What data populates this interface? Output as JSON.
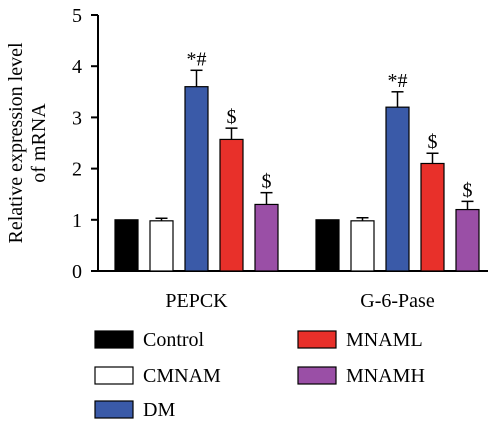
{
  "chart_data": {
    "type": "bar",
    "ylabel": "Relative expression level of mRNA",
    "ylabel_lines": [
      "Relative expression level",
      "of mRNA"
    ],
    "ylim": [
      0,
      5
    ],
    "yticks": [
      0,
      1,
      2,
      3,
      4,
      5
    ],
    "categories": [
      "PEPCK",
      "G-6-Pase"
    ],
    "series": [
      {
        "name": "Control",
        "color": "#000000",
        "values": [
          1.0,
          1.0
        ],
        "errors": [
          0,
          0
        ],
        "annotations": [
          "",
          ""
        ]
      },
      {
        "name": "CMNAM",
        "color": "#ffffff",
        "values": [
          0.98,
          0.98
        ],
        "errors": [
          0.05,
          0.06
        ],
        "annotations": [
          "",
          ""
        ]
      },
      {
        "name": "DM",
        "color": "#3a5aa8",
        "values": [
          3.6,
          3.2
        ],
        "errors": [
          0.32,
          0.3
        ],
        "annotations": [
          "*#",
          "*#"
        ]
      },
      {
        "name": "MNAML",
        "color": "#e8302a",
        "values": [
          2.57,
          2.1
        ],
        "errors": [
          0.22,
          0.2
        ],
        "annotations": [
          "$",
          "$"
        ]
      },
      {
        "name": "MNAMH",
        "color": "#9a4fa6",
        "values": [
          1.3,
          1.2
        ],
        "errors": [
          0.23,
          0.16
        ],
        "annotations": [
          "$",
          "$"
        ]
      }
    ],
    "legend_position": "bottom"
  }
}
